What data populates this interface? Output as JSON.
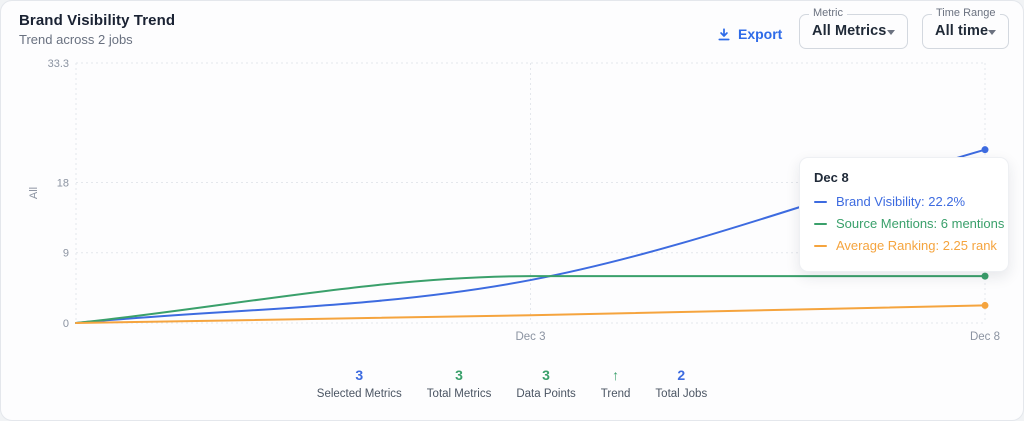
{
  "header": {
    "title": "Brand Visibility Trend",
    "subtitle": "Trend across 2 jobs"
  },
  "toolbar": {
    "export_label": "Export",
    "metric_select": {
      "label": "Metric",
      "value": "All Metrics"
    },
    "time_range_select": {
      "label": "Time Range",
      "value": "All time"
    }
  },
  "colors": {
    "brand_visibility": "#3d6be0",
    "source_mentions": "#3aa06b",
    "average_ranking": "#f5a43e",
    "export_blue": "#2e6be8",
    "grid": "#e4e7ec",
    "tick_text": "#8b93a1"
  },
  "chart_data": {
    "type": "line",
    "title": "Brand Visibility Trend",
    "categories": [
      "",
      "Dec 3",
      "Dec 8"
    ],
    "x_tick_labels": [
      "Dec 3",
      "Dec 8"
    ],
    "y_axis_label": "All",
    "y_ticks": [
      0,
      9,
      18,
      33.3
    ],
    "ylim": [
      0,
      33.3
    ],
    "grid": "dashed",
    "legend_position": "none",
    "series": [
      {
        "name": "Brand Visibility",
        "color": "#3d6be0",
        "values": [
          0,
          5.5,
          22.2
        ],
        "end_dot": true
      },
      {
        "name": "Source Mentions",
        "color": "#3aa06b",
        "values": [
          0,
          6,
          6
        ],
        "end_dot": true
      },
      {
        "name": "Average Ranking",
        "color": "#f5a43e",
        "values": [
          0,
          1,
          2.25
        ],
        "end_dot": true
      }
    ]
  },
  "tooltip": {
    "title": "Dec 8",
    "rows": [
      {
        "label": "Brand Visibility",
        "value": "22.2%",
        "text": "Brand Visibility: 22.2%",
        "color": "#3d6be0"
      },
      {
        "label": "Source Mentions",
        "value": "6 mentions",
        "text": "Source Mentions: 6 mentions",
        "color": "#3aa06b"
      },
      {
        "label": "Average Ranking",
        "value": "2.25 rank",
        "text": "Average Ranking: 2.25 rank",
        "color": "#f5a43e"
      }
    ]
  },
  "stats": [
    {
      "value": "3",
      "label": "Selected Metrics",
      "color": "#3d6be0"
    },
    {
      "value": "3",
      "label": "Total Metrics",
      "color": "#3aa06b"
    },
    {
      "value": "3",
      "label": "Data Points",
      "color": "#3aa06b"
    },
    {
      "value": "↑",
      "label": "Trend",
      "color": "#3aa06b"
    },
    {
      "value": "2",
      "label": "Total Jobs",
      "color": "#3d6be0"
    }
  ]
}
